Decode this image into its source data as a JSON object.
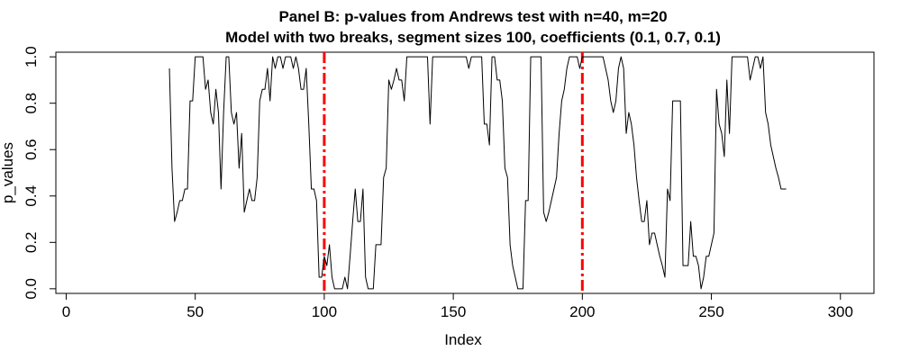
{
  "chart_data": {
    "type": "line",
    "title": "Panel B: p-values from Andrews test with n=40, m=20",
    "subtitle": "Model with two breaks, segment sizes 100, coefficients (0.1, 0.7, 0.1)",
    "xlabel": "Index",
    "ylabel": "p_values",
    "xlim": [
      -4,
      313
    ],
    "ylim": [
      -0.02,
      1.02
    ],
    "x_ticks": [
      0,
      50,
      100,
      150,
      200,
      250,
      300
    ],
    "y_ticks": [
      0.0,
      0.2,
      0.4,
      0.6,
      0.8,
      1.0
    ],
    "x_tick_labels": [
      "0",
      "50",
      "100",
      "150",
      "200",
      "250",
      "300"
    ],
    "y_tick_labels": [
      "0.0",
      "0.2",
      "0.4",
      "0.6",
      "0.8",
      "1.0"
    ],
    "grid": false,
    "series": [
      {
        "color": "#000000",
        "x_start": 40,
        "values": [
          0.95,
          0.52,
          0.29,
          0.33,
          0.38,
          0.38,
          0.43,
          0.43,
          0.81,
          0.81,
          1.0,
          1.0,
          1.0,
          1.0,
          0.86,
          0.9,
          0.76,
          0.71,
          0.86,
          0.76,
          0.43,
          0.76,
          1.0,
          1.0,
          0.76,
          0.71,
          0.76,
          0.52,
          0.67,
          0.33,
          0.38,
          0.43,
          0.38,
          0.38,
          0.48,
          0.81,
          0.86,
          0.86,
          0.95,
          0.81,
          1.0,
          0.95,
          1.0,
          1.0,
          0.95,
          1.0,
          1.0,
          1.0,
          0.95,
          1.0,
          0.95,
          0.86,
          0.86,
          0.95,
          0.71,
          0.43,
          0.43,
          0.38,
          0.05,
          0.05,
          0.14,
          0.1,
          0.19,
          0.05,
          0.0,
          0.0,
          0.0,
          0.0,
          0.05,
          0.0,
          0.14,
          0.29,
          0.43,
          0.29,
          0.29,
          0.43,
          0.05,
          0.0,
          0.0,
          0.0,
          0.19,
          0.19,
          0.19,
          0.48,
          0.52,
          0.9,
          0.86,
          0.9,
          0.95,
          0.9,
          0.9,
          0.81,
          1.0,
          1.0,
          1.0,
          1.0,
          1.0,
          1.0,
          1.0,
          1.0,
          1.0,
          0.71,
          1.0,
          1.0,
          1.0,
          1.0,
          1.0,
          1.0,
          1.0,
          1.0,
          1.0,
          1.0,
          1.0,
          1.0,
          1.0,
          1.0,
          0.95,
          1.0,
          1.0,
          1.0,
          1.0,
          1.0,
          0.71,
          0.71,
          0.62,
          1.0,
          1.0,
          0.9,
          0.9,
          0.81,
          0.52,
          0.48,
          0.19,
          0.1,
          0.05,
          0.0,
          0.0,
          0.0,
          0.38,
          0.38,
          1.0,
          1.0,
          1.0,
          1.0,
          1.0,
          0.33,
          0.29,
          0.33,
          0.38,
          0.43,
          0.48,
          0.67,
          0.81,
          0.86,
          0.95,
          1.0,
          1.0,
          1.0,
          1.0,
          0.95,
          1.0,
          1.0,
          1.0,
          1.0,
          1.0,
          1.0,
          1.0,
          1.0,
          1.0,
          0.95,
          0.9,
          0.81,
          0.76,
          0.81,
          0.95,
          1.0,
          0.95,
          0.67,
          0.76,
          0.71,
          0.62,
          0.48,
          0.38,
          0.29,
          0.29,
          0.38,
          0.19,
          0.24,
          0.24,
          0.19,
          0.14,
          0.1,
          0.05,
          0.43,
          0.38,
          0.81,
          0.81,
          0.81,
          0.81,
          0.1,
          0.1,
          0.1,
          0.29,
          0.14,
          0.14,
          0.1,
          0.0,
          0.05,
          0.14,
          0.14,
          0.19,
          0.24,
          0.86,
          0.71,
          0.67,
          0.57,
          0.9,
          0.67,
          1.0,
          1.0,
          1.0,
          1.0,
          1.0,
          1.0,
          1.0,
          0.9,
          0.95,
          1.0,
          1.0,
          0.95,
          1.0,
          0.76,
          0.71,
          0.62,
          0.57,
          0.52,
          0.48,
          0.43,
          0.43,
          0.43
        ]
      }
    ],
    "vlines": [
      {
        "x": 100,
        "color": "#ff0000",
        "style": "dashdot"
      },
      {
        "x": 200,
        "color": "#ff0000",
        "style": "dashdot"
      }
    ]
  }
}
